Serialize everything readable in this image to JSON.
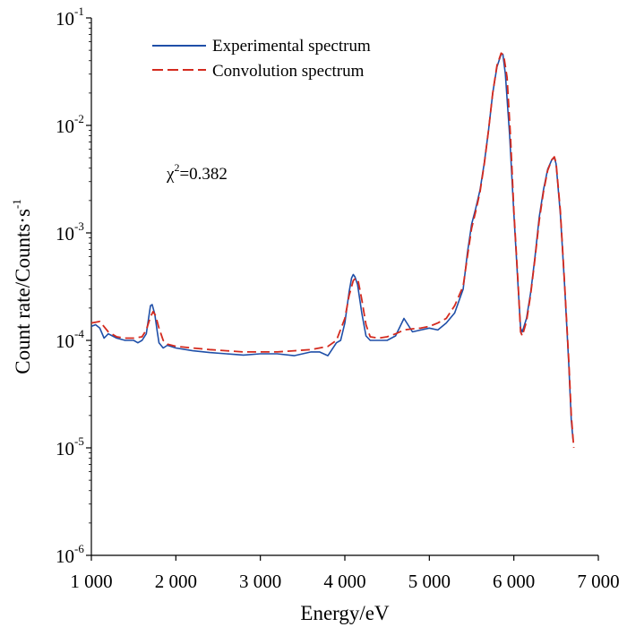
{
  "chart_data": {
    "type": "line",
    "title": "",
    "xlabel": "Energy/eV",
    "ylabel_main": "Count rate/Counts·s",
    "ylabel_exp": "-1",
    "xlim": [
      1000,
      7000
    ],
    "ylim": [
      1e-06,
      0.1
    ],
    "yscale": "log",
    "grid": false,
    "legend_position": "top-left",
    "x_ticks": [
      1000,
      2000,
      3000,
      4000,
      5000,
      6000,
      7000
    ],
    "x_tick_labels": [
      "1 000",
      "2 000",
      "3 000",
      "4 000",
      "5 000",
      "6 000",
      "7 000"
    ],
    "y_ticks": [
      {
        "value": 1e-06,
        "base": "10",
        "exp": "-6"
      },
      {
        "value": 1e-05,
        "base": "10",
        "exp": "-5"
      },
      {
        "value": 0.0001,
        "base": "10",
        "exp": "-4"
      },
      {
        "value": 0.001,
        "base": "10",
        "exp": "-3"
      },
      {
        "value": 0.01,
        "base": "10",
        "exp": "-2"
      },
      {
        "value": 0.1,
        "base": "10",
        "exp": "-1"
      }
    ],
    "annotation": {
      "symbol": "χ",
      "exp": "2",
      "text": "=0.382"
    },
    "series": [
      {
        "name": "Experimental spectrum",
        "color": "#1f4fa8",
        "dash": "solid",
        "x": [
          1000,
          1050,
          1100,
          1150,
          1200,
          1300,
          1400,
          1500,
          1550,
          1600,
          1650,
          1700,
          1720,
          1750,
          1780,
          1800,
          1850,
          1900,
          2000,
          2200,
          2400,
          2600,
          2800,
          3000,
          3200,
          3400,
          3600,
          3700,
          3800,
          3900,
          3950,
          4000,
          4050,
          4080,
          4100,
          4120,
          4150,
          4200,
          4250,
          4300,
          4400,
          4500,
          4600,
          4700,
          4800,
          4900,
          5000,
          5100,
          5200,
          5300,
          5400,
          5450,
          5500,
          5550,
          5600,
          5650,
          5700,
          5750,
          5800,
          5850,
          5870,
          5900,
          5950,
          6000,
          6050,
          6080,
          6100,
          6150,
          6200,
          6250,
          6300,
          6350,
          6400,
          6450,
          6480,
          6500,
          6550,
          6600,
          6650,
          6680,
          6700
        ],
        "y": [
          0.000135,
          0.00014,
          0.00013,
          0.000105,
          0.000115,
          0.000105,
          0.0001,
          0.0001,
          9.5e-05,
          0.0001,
          0.000115,
          0.00021,
          0.000215,
          0.000175,
          0.00012,
          9.5e-05,
          8.5e-05,
          9e-05,
          8.5e-05,
          8e-05,
          7.7e-05,
          7.5e-05,
          7.3e-05,
          7.5e-05,
          7.5e-05,
          7.2e-05,
          7.8e-05,
          7.8e-05,
          7.2e-05,
          9.5e-05,
          0.0001,
          0.000145,
          0.00028,
          0.00038,
          0.00041,
          0.00039,
          0.00033,
          0.00018,
          0.00011,
          0.0001,
          0.0001,
          0.0001,
          0.00011,
          0.00016,
          0.00012,
          0.000125,
          0.00013,
          0.000125,
          0.000145,
          0.00018,
          0.0003,
          0.00065,
          0.0012,
          0.0017,
          0.0025,
          0.0045,
          0.009,
          0.02,
          0.035,
          0.046,
          0.046,
          0.03,
          0.008,
          0.0015,
          0.00032,
          0.00013,
          0.00012,
          0.00016,
          0.00028,
          0.0006,
          0.0014,
          0.0025,
          0.0039,
          0.0048,
          0.005,
          0.0044,
          0.0015,
          0.00033,
          6e-05,
          1.8e-05,
          1.2e-05
        ]
      },
      {
        "name": "Convolution spectrum",
        "color": "#d42a1e",
        "dash": "dashed",
        "x": [
          1000,
          1100,
          1200,
          1300,
          1400,
          1500,
          1600,
          1650,
          1700,
          1730,
          1760,
          1800,
          1850,
          1900,
          2000,
          2200,
          2400,
          2600,
          2800,
          3000,
          3200,
          3400,
          3600,
          3800,
          3900,
          4000,
          4050,
          4100,
          4130,
          4160,
          4200,
          4250,
          4300,
          4400,
          4500,
          4600,
          4700,
          4800,
          4900,
          5000,
          5100,
          5200,
          5300,
          5400,
          5450,
          5500,
          5550,
          5600,
          5650,
          5700,
          5750,
          5800,
          5850,
          5880,
          5920,
          5960,
          6000,
          6050,
          6080,
          6100,
          6150,
          6200,
          6250,
          6300,
          6350,
          6400,
          6450,
          6480,
          6500,
          6550,
          6600,
          6650,
          6680,
          6710
        ],
        "y": [
          0.000145,
          0.00015,
          0.00012,
          0.000108,
          0.000105,
          0.000105,
          0.000108,
          0.000125,
          0.000165,
          0.000185,
          0.00017,
          0.00013,
          0.0001,
          9.2e-05,
          8.8e-05,
          8.5e-05,
          8.2e-05,
          8e-05,
          7.8e-05,
          7.8e-05,
          7.8e-05,
          8e-05,
          8.2e-05,
          8.8e-05,
          0.0001,
          0.00016,
          0.00026,
          0.00036,
          0.00038,
          0.00035,
          0.00024,
          0.00014,
          0.000108,
          0.000105,
          0.000108,
          0.000115,
          0.000125,
          0.000128,
          0.00013,
          0.000135,
          0.000145,
          0.00016,
          0.00021,
          0.00032,
          0.0006,
          0.0011,
          0.0016,
          0.0024,
          0.0044,
          0.009,
          0.02,
          0.036,
          0.047,
          0.045,
          0.028,
          0.008,
          0.0016,
          0.00034,
          0.00012,
          0.00011,
          0.00015,
          0.00027,
          0.00058,
          0.0013,
          0.0024,
          0.0038,
          0.0048,
          0.0051,
          0.0045,
          0.0016,
          0.00034,
          6.5e-05,
          2e-05,
          1e-05
        ]
      }
    ]
  }
}
